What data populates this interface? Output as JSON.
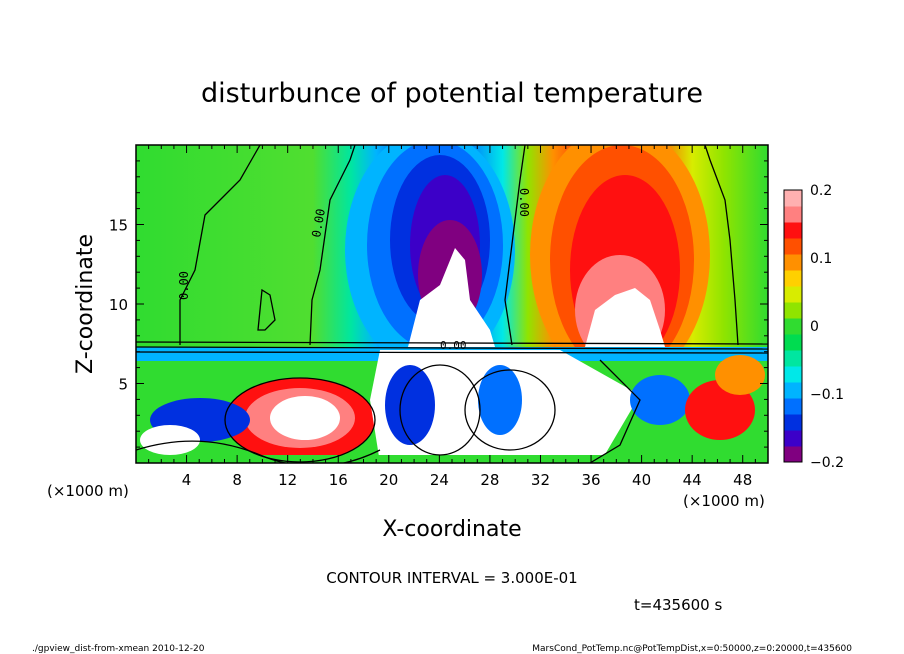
{
  "chart_data": {
    "type": "heatmap",
    "title": "disturbunce of potential temperature",
    "xlabel": "X-coordinate",
    "ylabel": "Z-coordinate",
    "x_unit_label": "(×1000 m)",
    "xlim": [
      0,
      50
    ],
    "ylim": [
      0,
      20
    ],
    "x_ticks": [
      4,
      8,
      12,
      16,
      20,
      24,
      28,
      32,
      36,
      40,
      44,
      48
    ],
    "y_ticks": [
      5,
      10,
      15
    ],
    "colorbar": {
      "range": [
        -0.2,
        0.2
      ],
      "ticks": [
        "0.2",
        "0.1",
        "0",
        "−0.1",
        "−0.2"
      ],
      "tick_values": [
        0.2,
        0.1,
        0,
        -0.1,
        -0.2
      ],
      "colors": [
        "#800080",
        "#3c00c8",
        "#0030e0",
        "#0070ff",
        "#00b4ff",
        "#00e8e8",
        "#00e6a0",
        "#00dc50",
        "#30dc30",
        "#90e400",
        "#d8ec00",
        "#ffd000",
        "#ff9000",
        "#ff5000",
        "#ff1010",
        "#ff8080",
        "#ffb0b0"
      ]
    },
    "contour_labels": [
      "0.00",
      "0.00",
      "0.00",
      "0.00"
    ],
    "contour_interval": "CONTOUR INTERVAL = 3.000E-01",
    "time": "t=435600 s"
  },
  "footer": {
    "left": "./gpview_dist-from-xmean  2010-12-20",
    "right": "MarsCond_PotTemp.nc@PotTempDist,x=0:50000,z=0:20000,t=435600"
  }
}
